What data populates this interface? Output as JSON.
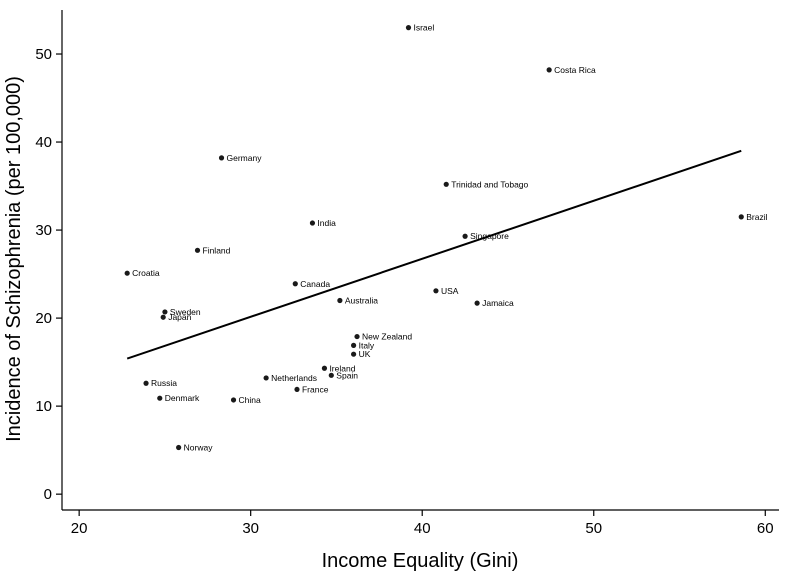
{
  "chart_data": {
    "type": "scatter",
    "xlabel": "Income Equality (Gini)",
    "ylabel": "Incidence of Schizophrenia (per 100,000)",
    "xlim": [
      19,
      60.8
    ],
    "ylim": [
      -1.8,
      55
    ],
    "xticks": [
      20,
      30,
      40,
      50,
      60
    ],
    "yticks": [
      0,
      10,
      20,
      30,
      40,
      50
    ],
    "grid": false,
    "points": [
      {
        "label": "Israel",
        "x": 39.2,
        "y": 53
      },
      {
        "label": "Costa Rica",
        "x": 47.4,
        "y": 48.2
      },
      {
        "label": "Germany",
        "x": 28.3,
        "y": 38.2
      },
      {
        "label": "Trinidad and Tobago",
        "x": 41.4,
        "y": 35.2
      },
      {
        "label": "Brazil",
        "x": 58.6,
        "y": 31.5
      },
      {
        "label": "India",
        "x": 33.6,
        "y": 30.8
      },
      {
        "label": "Singapore",
        "x": 42.5,
        "y": 29.3
      },
      {
        "label": "Finland",
        "x": 26.9,
        "y": 27.7
      },
      {
        "label": "Croatia",
        "x": 22.8,
        "y": 25.1
      },
      {
        "label": "Canada",
        "x": 32.6,
        "y": 23.9
      },
      {
        "label": "USA",
        "x": 40.8,
        "y": 23.1
      },
      {
        "label": "Australia",
        "x": 35.2,
        "y": 22.0
      },
      {
        "label": "Jamaica",
        "x": 43.2,
        "y": 21.7
      },
      {
        "label": "Sweden",
        "x": 25.0,
        "y": 20.7
      },
      {
        "label": "Japan",
        "x": 24.9,
        "y": 20.1
      },
      {
        "label": "New Zealand",
        "x": 36.2,
        "y": 17.9
      },
      {
        "label": "Italy",
        "x": 36.0,
        "y": 16.9
      },
      {
        "label": "UK",
        "x": 36.0,
        "y": 15.9
      },
      {
        "label": "Ireland",
        "x": 34.3,
        "y": 14.3
      },
      {
        "label": "Spain",
        "x": 34.7,
        "y": 13.5
      },
      {
        "label": "Netherlands",
        "x": 30.9,
        "y": 13.2
      },
      {
        "label": "Russia",
        "x": 23.9,
        "y": 12.6
      },
      {
        "label": "France",
        "x": 32.7,
        "y": 11.9
      },
      {
        "label": "Denmark",
        "x": 24.7,
        "y": 10.9
      },
      {
        "label": "China",
        "x": 29.0,
        "y": 10.7
      },
      {
        "label": "Norway",
        "x": 25.8,
        "y": 5.3
      }
    ],
    "fit_line": {
      "x": [
        22.8,
        58.6
      ],
      "y": [
        15.4,
        39.0
      ]
    }
  }
}
